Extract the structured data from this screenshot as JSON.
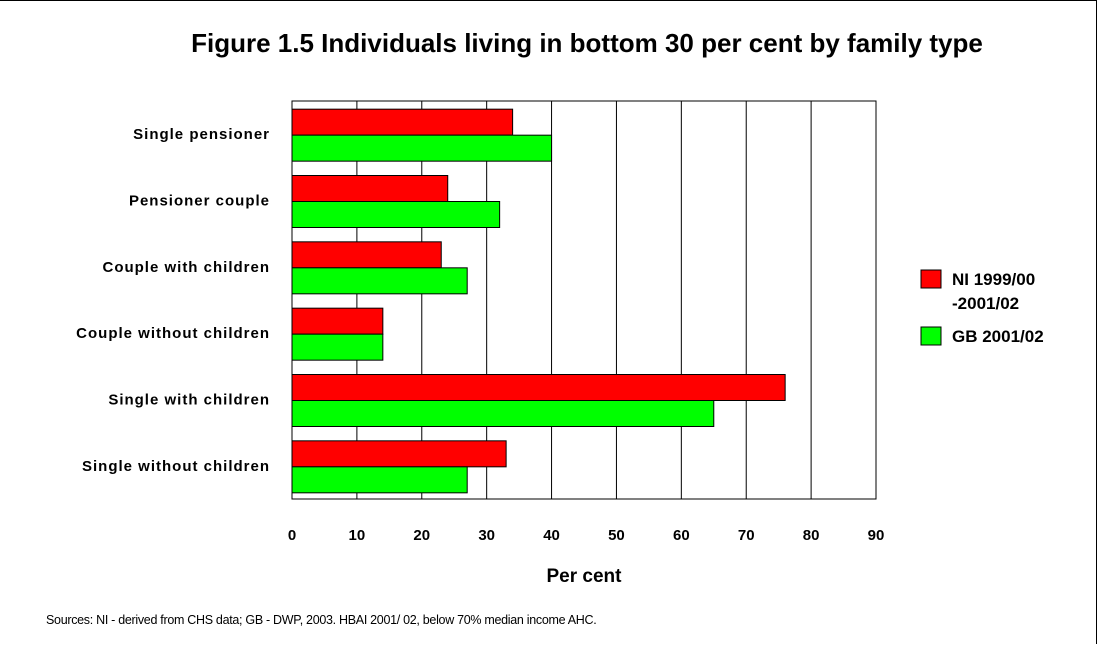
{
  "chart_data": {
    "type": "bar",
    "orientation": "horizontal",
    "title": "Figure 1.5 Individuals living in bottom 30 per cent by family type",
    "xlabel": "Per cent",
    "ylabel": "",
    "categories": [
      "Single pensioner",
      "Pensioner couple",
      "Couple with children",
      "Couple without children",
      "Single with children",
      "Single without children"
    ],
    "series": [
      {
        "name": "NI 1999/00 -2001/02",
        "legend_lines": [
          "NI 1999/00",
          "-2001/02"
        ],
        "color": "#ff0000",
        "values": [
          34,
          24,
          23,
          14,
          76,
          33
        ]
      },
      {
        "name": "GB 2001/02",
        "legend_lines": [
          "GB 2001/02"
        ],
        "color": "#00ff00",
        "values": [
          40,
          32,
          27,
          14,
          65,
          27
        ]
      }
    ],
    "xlim": [
      0,
      90
    ],
    "xticks": [
      "0",
      "10",
      "20",
      "30",
      "40",
      "50",
      "60",
      "70",
      "80",
      "90"
    ],
    "grid": true,
    "legend": "right"
  },
  "source": "Sources: NI - derived from CHS data; GB - DWP, 2003.  HBAI 2001/ 02, below 70% median income AHC."
}
